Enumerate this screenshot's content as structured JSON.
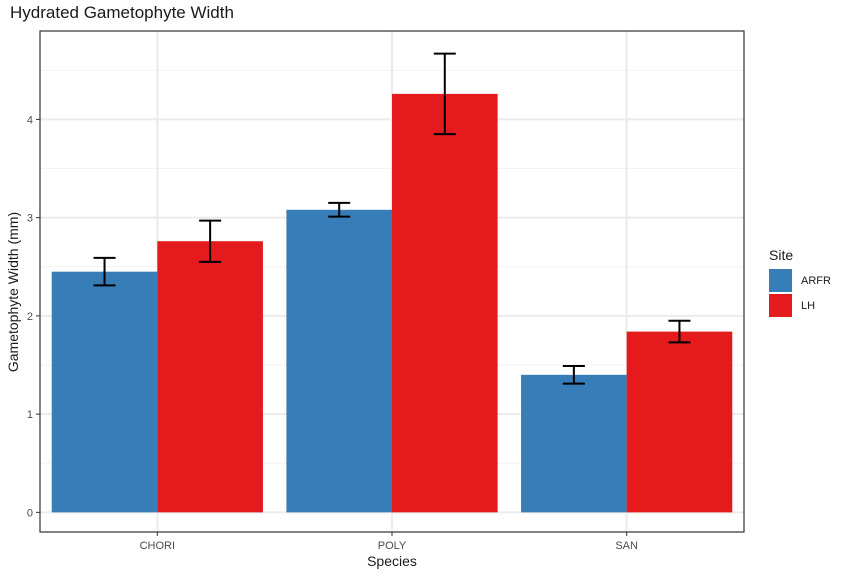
{
  "chart_data": {
    "type": "bar",
    "title": "Hydrated Gametophyte Width",
    "xlabel": "Species",
    "ylabel": "Gametophyte Width (mm)",
    "categories": [
      "CHORI",
      "POLY",
      "SAN"
    ],
    "ylim": [
      -0.2,
      4.9
    ],
    "yticks": [
      0,
      1,
      2,
      3,
      4
    ],
    "grid": true,
    "legend": {
      "title": "Site",
      "position": "right"
    },
    "series": [
      {
        "name": "ARFR",
        "color": "#377EB8",
        "values": [
          2.45,
          3.08,
          1.4
        ],
        "error": [
          0.14,
          0.07,
          0.09
        ]
      },
      {
        "name": "LH",
        "color": "#E41A1C",
        "values": [
          2.76,
          4.26,
          1.84
        ],
        "error": [
          0.21,
          0.41,
          0.11
        ]
      }
    ]
  }
}
